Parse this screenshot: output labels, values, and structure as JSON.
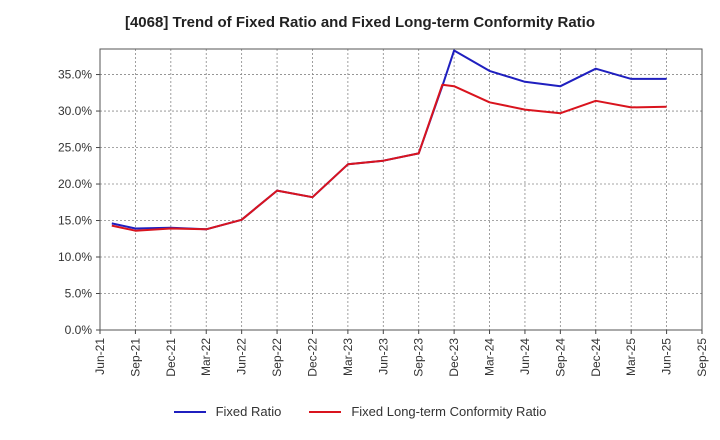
{
  "title": "[4068]  Trend of Fixed Ratio and Fixed Long-term Conformity Ratio",
  "legend": [
    {
      "label": "Fixed Ratio",
      "color": "#1f1fbf"
    },
    {
      "label": "Fixed Long-term Conformity Ratio",
      "color": "#d9141e"
    }
  ],
  "chart_data": {
    "type": "line",
    "title": "[4068]  Trend of Fixed Ratio and Fixed Long-term Conformity Ratio",
    "xlabel": "",
    "ylabel": "",
    "x_ticks": [
      "Jun-21",
      "Sep-21",
      "Dec-21",
      "Mar-22",
      "Jun-22",
      "Sep-22",
      "Dec-22",
      "Mar-23",
      "Jun-23",
      "Sep-23",
      "Dec-23",
      "Mar-24",
      "Jun-24",
      "Sep-24",
      "Dec-24",
      "Mar-25",
      "Jun-25",
      "Sep-25"
    ],
    "y_ticks": [
      "0.0%",
      "5.0%",
      "10.0%",
      "15.0%",
      "20.0%",
      "25.0%",
      "30.0%",
      "35.0%"
    ],
    "ylim": [
      0,
      38.5
    ],
    "grid": true,
    "legend_position": "bottom",
    "series": [
      {
        "name": "Fixed Ratio",
        "color": "#1f1fbf",
        "x": [
          "Jul-21",
          "Sep-21",
          "Dec-21",
          "Mar-22",
          "Jun-22",
          "Sep-22",
          "Dec-22",
          "Mar-23",
          "Jun-23",
          "Sep-23",
          "Nov-23",
          "Dec-23",
          "Mar-24",
          "Jun-24",
          "Sep-24",
          "Dec-24",
          "Mar-25",
          "Jun-25"
        ],
        "values": [
          14.6,
          13.9,
          14.0,
          13.8,
          15.1,
          19.1,
          18.2,
          22.7,
          23.2,
          24.2,
          33.4,
          38.3,
          35.5,
          34.0,
          33.4,
          35.8,
          34.4,
          34.4
        ]
      },
      {
        "name": "Fixed Long-term Conformity Ratio",
        "color": "#d9141e",
        "x": [
          "Jul-21",
          "Sep-21",
          "Dec-21",
          "Mar-22",
          "Jun-22",
          "Sep-22",
          "Dec-22",
          "Mar-23",
          "Jun-23",
          "Sep-23",
          "Nov-23",
          "Dec-23",
          "Mar-24",
          "Jun-24",
          "Sep-24",
          "Dec-24",
          "Mar-25",
          "Jun-25"
        ],
        "values": [
          14.3,
          13.6,
          13.9,
          13.8,
          15.1,
          19.1,
          18.2,
          22.7,
          23.2,
          24.2,
          33.6,
          33.4,
          31.2,
          30.2,
          29.7,
          31.4,
          30.5,
          30.6
        ]
      }
    ]
  }
}
